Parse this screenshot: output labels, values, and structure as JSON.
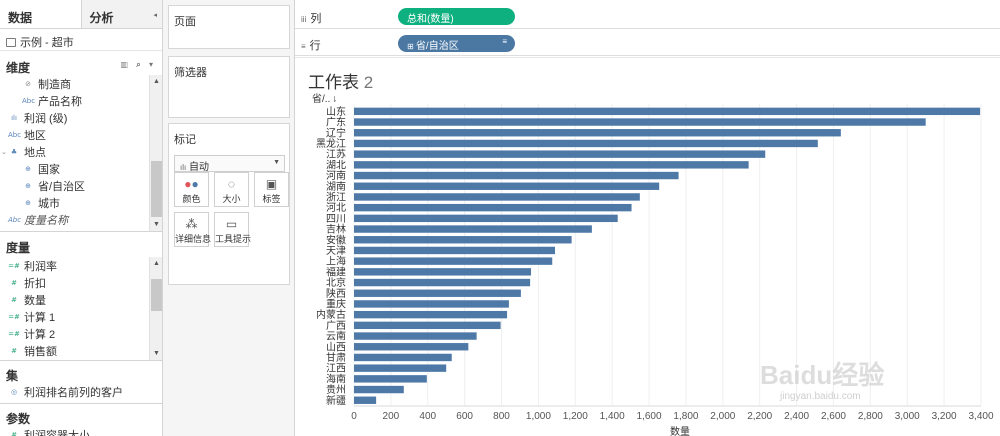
{
  "left_pane": {
    "tabs": [
      {
        "label": "数据"
      },
      {
        "label": "分析"
      }
    ],
    "datasource": "示例 - 超市",
    "dimensions": {
      "header": "维度",
      "items": [
        {
          "label": "制造商",
          "icon": "paperclip"
        },
        {
          "label": "产品名称",
          "icon": "abc"
        },
        {
          "label": "利润 (级)",
          "icon": "bar"
        },
        {
          "label": "地区",
          "icon": "abc"
        },
        {
          "label": "地点",
          "icon": "hierarchy"
        },
        {
          "label": "国家",
          "icon": "globe"
        },
        {
          "label": "省/自治区",
          "icon": "globe"
        },
        {
          "label": "城市",
          "icon": "globe"
        },
        {
          "label": "度量名称",
          "icon": "abc"
        }
      ]
    },
    "measures": {
      "header": "度量",
      "items": [
        {
          "label": "利润率",
          "icon": "=#"
        },
        {
          "label": "折扣",
          "icon": "#"
        },
        {
          "label": "数量",
          "icon": "#"
        },
        {
          "label": "计算 1",
          "icon": "=#"
        },
        {
          "label": "计算 2",
          "icon": "=#"
        },
        {
          "label": "销售额",
          "icon": "#"
        }
      ]
    },
    "sets": {
      "header": "集",
      "items": [
        {
          "label": "利润排名前列的客户",
          "icon": "set"
        }
      ]
    },
    "parameters": {
      "header": "参数",
      "items": [
        {
          "label": "利润容器大小",
          "icon": "#"
        }
      ]
    }
  },
  "cards": {
    "pages": "页面",
    "filters": "筛选器",
    "marks": {
      "title": "标记",
      "type": "自动",
      "buttons": [
        {
          "label": "颜色",
          "icon": "color"
        },
        {
          "label": "大小",
          "icon": "size"
        },
        {
          "label": "标签",
          "icon": "label"
        },
        {
          "label": "详细信息",
          "icon": "detail"
        },
        {
          "label": "工具提示",
          "icon": "tooltip"
        }
      ]
    }
  },
  "shelves": {
    "columns": {
      "label": "列",
      "pill": "总和(数量)"
    },
    "rows": {
      "label": "行",
      "pill": "省/自治区"
    }
  },
  "sheet": {
    "title": "工作表",
    "title_num": "2"
  },
  "chart_data": {
    "type": "bar",
    "orientation": "horizontal",
    "row_header": "省/..",
    "xlabel": "数量",
    "xlim": [
      0,
      3400
    ],
    "xticks": [
      "0",
      "200",
      "400",
      "600",
      "800",
      "1,000",
      "1,200",
      "1,400",
      "1,600",
      "1,800",
      "2,000",
      "2,200",
      "2,400",
      "2,600",
      "2,800",
      "3,000",
      "3,200",
      "3,400"
    ],
    "bar_color": "#4e79a7",
    "grid": true,
    "categories": [
      "山东",
      "广东",
      "辽宁",
      "黑龙江",
      "江苏",
      "湖北",
      "河南",
      "湖南",
      "浙江",
      "河北",
      "四川",
      "吉林",
      "安徽",
      "天津",
      "上海",
      "福建",
      "北京",
      "陕西",
      "重庆",
      "内蒙古",
      "广西",
      "云南",
      "山西",
      "甘肃",
      "江西",
      "海南",
      "贵州",
      "新疆"
    ],
    "values": [
      3395,
      3100,
      2640,
      2515,
      2230,
      2140,
      1760,
      1655,
      1550,
      1505,
      1430,
      1290,
      1180,
      1090,
      1075,
      960,
      955,
      905,
      840,
      830,
      795,
      665,
      620,
      530,
      500,
      395,
      270,
      120
    ]
  },
  "watermark": "Baidu经验",
  "watermark_url": "jingyan.baidu.com"
}
